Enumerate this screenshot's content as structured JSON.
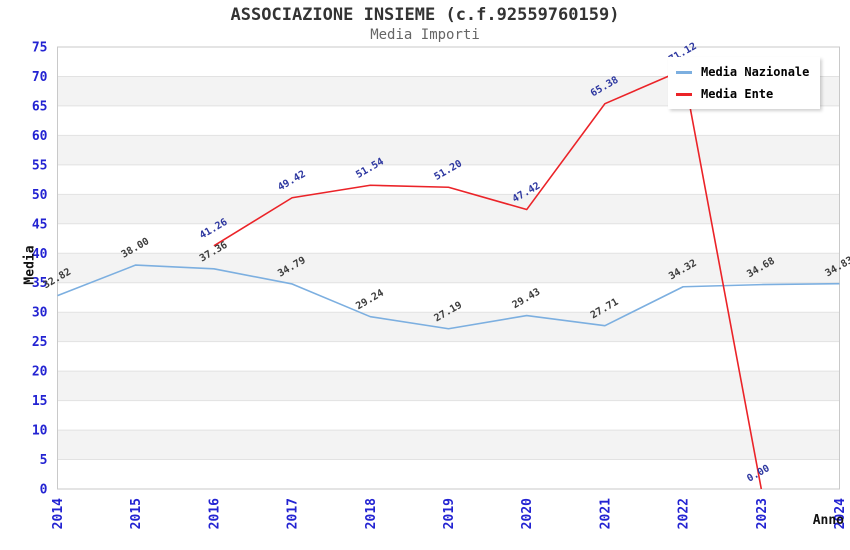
{
  "chart_data": {
    "type": "line",
    "title": "ASSOCIAZIONE INSIEME (c.f.92559760159)",
    "subtitle": "Media Importi",
    "xlabel": "Anno",
    "ylabel": "Media",
    "ylim": [
      0,
      75
    ],
    "y_tick_step": 5,
    "grid": "horizontal-alternating-bands",
    "legend_position": "top-right",
    "categories": [
      2014,
      2015,
      2016,
      2017,
      2018,
      2019,
      2020,
      2021,
      2022,
      2023,
      2024
    ],
    "series": [
      {
        "name": "Media Nazionale",
        "color": "#7cafe0",
        "label_color": "#3c3c3c",
        "x": [
          2014,
          2015,
          2016,
          2017,
          2018,
          2019,
          2020,
          2021,
          2022,
          2023,
          2024
        ],
        "values": [
          32.82,
          38.0,
          37.36,
          34.79,
          29.24,
          27.19,
          29.43,
          27.71,
          34.32,
          34.68,
          34.83
        ]
      },
      {
        "name": "Media Ente",
        "color": "#eb2328",
        "label_color": "#2d37a0",
        "x": [
          2016,
          2017,
          2018,
          2019,
          2020,
          2021,
          2022,
          2023
        ],
        "values": [
          41.26,
          49.42,
          51.54,
          51.2,
          47.42,
          65.38,
          71.12,
          0.0
        ]
      }
    ],
    "colors": {
      "tick_label": "#2323d2",
      "band_fill": "#f3f3f3",
      "grid_line": "#e2e2e2",
      "plot_border": "#c9c9c9",
      "title": "#333333",
      "subtitle": "#666666"
    }
  }
}
